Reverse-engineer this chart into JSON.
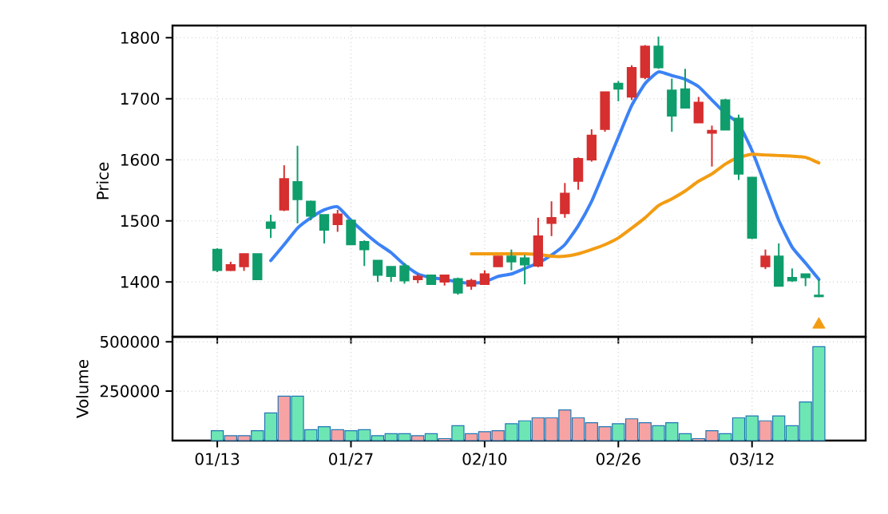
{
  "chart_data": [
    {
      "type": "candlestick",
      "ylabel": "Price",
      "ylim": [
        1310,
        1820
      ],
      "yticks": [
        1400,
        1500,
        1600,
        1700,
        1800
      ],
      "grid": true,
      "categories": [
        null,
        null,
        null,
        null,
        null,
        null,
        null,
        null,
        null,
        null,
        null,
        null,
        null,
        null,
        null,
        null,
        null,
        null,
        null,
        null,
        null,
        null,
        null,
        null,
        null,
        null,
        null,
        null,
        null,
        null,
        null,
        null,
        null,
        null,
        null,
        null,
        null,
        null,
        null,
        null,
        null,
        null,
        null,
        null,
        null,
        null
      ],
      "ohlc": [
        [
          1453,
          1455,
          1416,
          1419
        ],
        [
          1419,
          1433,
          1418,
          1428
        ],
        [
          1425,
          1446,
          1418,
          1446
        ],
        [
          1446,
          1446,
          1404,
          1404
        ],
        [
          1498,
          1510,
          1472,
          1488
        ],
        [
          1518,
          1591,
          1516,
          1569
        ],
        [
          1564,
          1623,
          1496,
          1535
        ],
        [
          1532,
          1533,
          1501,
          1508
        ],
        [
          1510,
          1510,
          1463,
          1485
        ],
        [
          1494,
          1518,
          1482,
          1511
        ],
        [
          1501,
          1501,
          1461,
          1461
        ],
        [
          1466,
          1468,
          1426,
          1453
        ],
        [
          1435,
          1435,
          1400,
          1411
        ],
        [
          1425,
          1425,
          1400,
          1409
        ],
        [
          1426,
          1431,
          1397,
          1402
        ],
        [
          1404,
          1413,
          1398,
          1409
        ],
        [
          1411,
          1411,
          1396,
          1396
        ],
        [
          1400,
          1411,
          1394,
          1411
        ],
        [
          1405,
          1407,
          1379,
          1382
        ],
        [
          1393,
          1405,
          1387,
          1402
        ],
        [
          1396,
          1419,
          1396,
          1413
        ],
        [
          1425,
          1442,
          1425,
          1442
        ],
        [
          1442,
          1453,
          1419,
          1433
        ],
        [
          1439,
          1444,
          1396,
          1428
        ],
        [
          1426,
          1505,
          1424,
          1475
        ],
        [
          1496,
          1532,
          1475,
          1505
        ],
        [
          1512,
          1562,
          1505,
          1545
        ],
        [
          1565,
          1604,
          1551,
          1602
        ],
        [
          1600,
          1650,
          1597,
          1640
        ],
        [
          1650,
          1711,
          1646,
          1711
        ],
        [
          1725,
          1729,
          1696,
          1716
        ],
        [
          1703,
          1755,
          1698,
          1751
        ],
        [
          1735,
          1788,
          1732,
          1786
        ],
        [
          1786,
          1802,
          1749,
          1751
        ],
        [
          1714,
          1733,
          1646,
          1672
        ],
        [
          1716,
          1749,
          1685,
          1685
        ],
        [
          1661,
          1703,
          1661,
          1694
        ],
        [
          1644,
          1656,
          1589,
          1648
        ],
        [
          1698,
          1700,
          1649,
          1649
        ],
        [
          1668,
          1674,
          1567,
          1577
        ],
        [
          1571,
          1571,
          1470,
          1472
        ],
        [
          1425,
          1453,
          1421,
          1442
        ],
        [
          1442,
          1463,
          1393,
          1393
        ],
        [
          1407,
          1422,
          1400,
          1402
        ],
        [
          1413,
          1413,
          1393,
          1407
        ],
        [
          1378,
          1404,
          1375,
          1376
        ]
      ],
      "colors": [
        "#0f9d6b",
        "#d62f2f",
        "#d62f2f",
        "#0f9d6b",
        "#0f9d6b",
        "#d62f2f",
        "#0f9d6b",
        "#0f9d6b",
        "#0f9d6b",
        "#d62f2f",
        "#0f9d6b",
        "#0f9d6b",
        "#0f9d6b",
        "#0f9d6b",
        "#0f9d6b",
        "#d62f2f",
        "#0f9d6b",
        "#d62f2f",
        "#0f9d6b",
        "#d62f2f",
        "#d62f2f",
        "#d62f2f",
        "#0f9d6b",
        "#0f9d6b",
        "#d62f2f",
        "#d62f2f",
        "#d62f2f",
        "#d62f2f",
        "#d62f2f",
        "#d62f2f",
        "#0f9d6b",
        "#d62f2f",
        "#d62f2f",
        "#0f9d6b",
        "#0f9d6b",
        "#0f9d6b",
        "#d62f2f",
        "#d62f2f",
        "#0f9d6b",
        "#0f9d6b",
        "#0f9d6b",
        "#d62f2f",
        "#0f9d6b",
        "#0f9d6b",
        "#0f9d6b",
        "#0f9d6b"
      ],
      "series": [
        {
          "type": "line",
          "color": "#3b82f6",
          "values": [
            null,
            null,
            null,
            null,
            1435,
            1461,
            1488,
            1505,
            1518,
            1523,
            1501,
            1481,
            1463,
            1448,
            1428,
            1413,
            1407,
            1404,
            1400,
            1398,
            1400,
            1409,
            1413,
            1422,
            1431,
            1444,
            1461,
            1492,
            1532,
            1584,
            1637,
            1689,
            1725,
            1744,
            1738,
            1732,
            1720,
            1698,
            1676,
            1659,
            1615,
            1558,
            1501,
            1457,
            1431,
            1404
          ]
        },
        {
          "type": "line",
          "color": "#f39c12",
          "values": [
            null,
            null,
            null,
            null,
            null,
            null,
            null,
            null,
            null,
            null,
            null,
            null,
            null,
            null,
            null,
            null,
            null,
            null,
            null,
            1446,
            1446,
            1446,
            1446,
            1446,
            1445,
            1442,
            1442,
            1446,
            1453,
            1461,
            1472,
            1488,
            1505,
            1525,
            1536,
            1549,
            1565,
            1577,
            1593,
            1604,
            1609,
            1608,
            1607,
            1606,
            1604,
            1595
          ]
        },
        {
          "type": "scatter",
          "marker": "triangle",
          "color": "#f39c12",
          "values": [
            null,
            null,
            null,
            null,
            null,
            null,
            null,
            null,
            null,
            null,
            null,
            null,
            null,
            null,
            null,
            null,
            null,
            null,
            null,
            null,
            null,
            null,
            null,
            null,
            null,
            null,
            null,
            null,
            null,
            null,
            null,
            null,
            null,
            null,
            null,
            null,
            null,
            null,
            null,
            null,
            null,
            null,
            null,
            null,
            null,
            1330
          ]
        }
      ]
    },
    {
      "type": "bar",
      "ylabel": "Volume",
      "ylim": [
        0,
        525000
      ],
      "yticks": [
        250000,
        500000
      ],
      "grid": true,
      "categories": [
        "01/13",
        null,
        null,
        null,
        null,
        null,
        null,
        null,
        null,
        null,
        "01/27",
        null,
        null,
        null,
        null,
        null,
        null,
        null,
        null,
        null,
        "02/10",
        null,
        null,
        null,
        null,
        null,
        null,
        null,
        null,
        null,
        "02/26",
        null,
        null,
        null,
        null,
        null,
        null,
        null,
        null,
        null,
        "03/12",
        null,
        null,
        null,
        null,
        null
      ],
      "values": [
        50000,
        25000,
        25000,
        50000,
        140000,
        225000,
        225000,
        55000,
        70000,
        55000,
        50000,
        55000,
        25000,
        35000,
        35000,
        25000,
        35000,
        10000,
        75000,
        35000,
        45000,
        50000,
        85000,
        100000,
        115000,
        115000,
        155000,
        115000,
        90000,
        70000,
        85000,
        110000,
        90000,
        75000,
        90000,
        35000,
        10000,
        50000,
        35000,
        115000,
        125000,
        100000,
        125000,
        75000,
        195000,
        475000
      ],
      "colors": [
        "#6ee6b4",
        "#f8a3a3",
        "#f8a3a3",
        "#6ee6b4",
        "#6ee6b4",
        "#f8a3a3",
        "#6ee6b4",
        "#6ee6b4",
        "#6ee6b4",
        "#f8a3a3",
        "#6ee6b4",
        "#6ee6b4",
        "#6ee6b4",
        "#6ee6b4",
        "#6ee6b4",
        "#f8a3a3",
        "#6ee6b4",
        "#f8a3a3",
        "#6ee6b4",
        "#f8a3a3",
        "#f8a3a3",
        "#f8a3a3",
        "#6ee6b4",
        "#6ee6b4",
        "#f8a3a3",
        "#f8a3a3",
        "#f8a3a3",
        "#f8a3a3",
        "#f8a3a3",
        "#f8a3a3",
        "#6ee6b4",
        "#f8a3a3",
        "#f8a3a3",
        "#6ee6b4",
        "#6ee6b4",
        "#6ee6b4",
        "#f8a3a3",
        "#f8a3a3",
        "#6ee6b4",
        "#6ee6b4",
        "#6ee6b4",
        "#f8a3a3",
        "#6ee6b4",
        "#6ee6b4",
        "#6ee6b4",
        "#6ee6b4"
      ]
    }
  ]
}
